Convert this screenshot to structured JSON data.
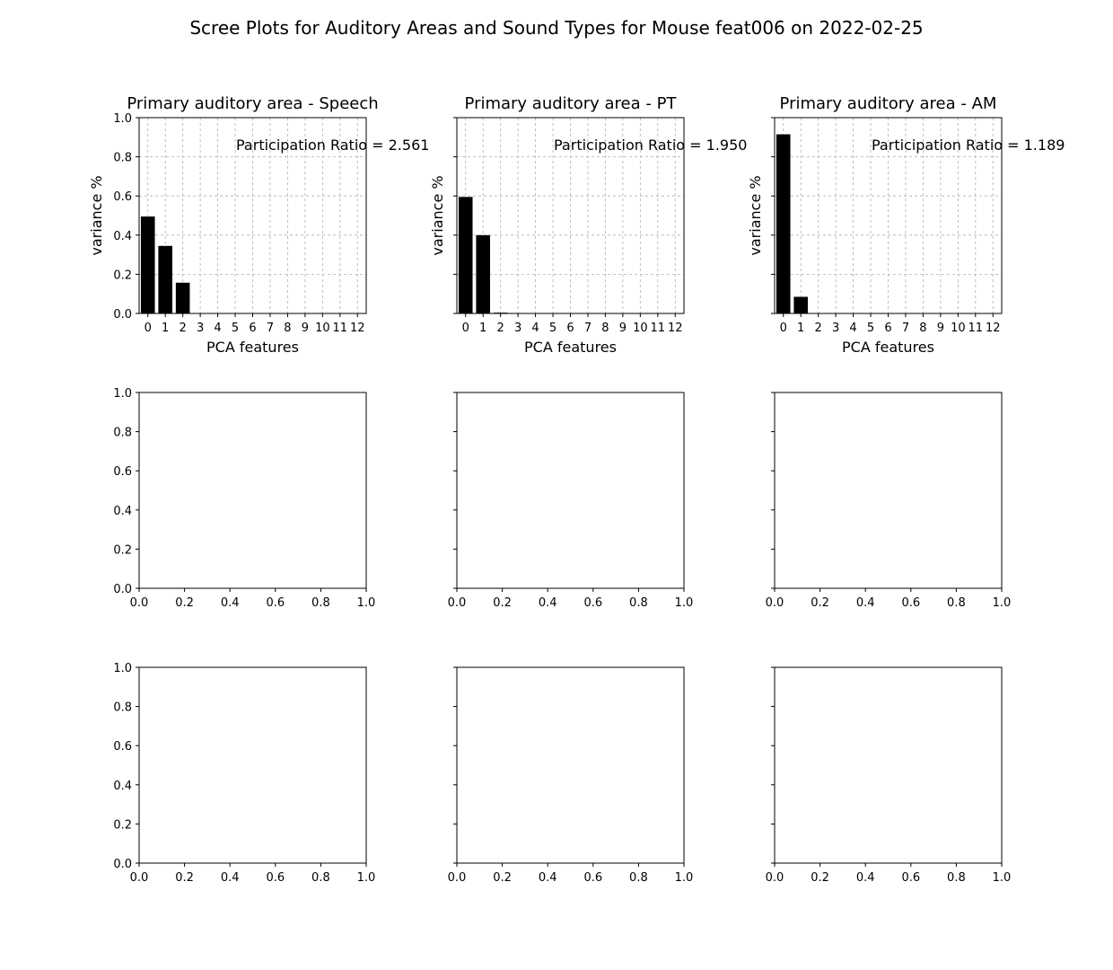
{
  "figure": {
    "title": "Scree Plots for Auditory Areas and Sound Types for Mouse feat006 on 2022-02-25"
  },
  "chart_data": [
    {
      "type": "bar",
      "title": "Primary auditory area - Speech",
      "xlabel": "PCA features",
      "ylabel": "variance %",
      "categories": [
        "0",
        "1",
        "2",
        "3",
        "4",
        "5",
        "6",
        "7",
        "8",
        "9",
        "10",
        "11",
        "12"
      ],
      "values": [
        0.495,
        0.345,
        0.157,
        0.002,
        0,
        0,
        0,
        0,
        0,
        0,
        0,
        0,
        0
      ],
      "xlim": [
        -0.5,
        12.5
      ],
      "ylim": [
        0,
        1
      ],
      "yticks": [
        "0.0",
        "0.2",
        "0.4",
        "0.6",
        "0.8",
        "1.0"
      ],
      "show_ytick_labels": true,
      "grid": true,
      "annotation": "Participation Ratio = 2.561"
    },
    {
      "type": "bar",
      "title": "Primary auditory area - PT",
      "xlabel": "PCA features",
      "ylabel": "variance %",
      "categories": [
        "0",
        "1",
        "2",
        "3",
        "4",
        "5",
        "6",
        "7",
        "8",
        "9",
        "10",
        "11",
        "12"
      ],
      "values": [
        0.595,
        0.4,
        0.004,
        0.001,
        0,
        0,
        0,
        0,
        0,
        0,
        0,
        0,
        0
      ],
      "xlim": [
        -0.5,
        12.5
      ],
      "ylim": [
        0,
        1
      ],
      "yticks": [
        "0.0",
        "0.2",
        "0.4",
        "0.6",
        "0.8",
        "1.0"
      ],
      "show_ytick_labels": false,
      "grid": true,
      "annotation": "Participation Ratio = 1.950"
    },
    {
      "type": "bar",
      "title": "Primary auditory area - AM",
      "xlabel": "PCA features",
      "ylabel": "variance %",
      "categories": [
        "0",
        "1",
        "2",
        "3",
        "4",
        "5",
        "6",
        "7",
        "8",
        "9",
        "10",
        "11",
        "12"
      ],
      "values": [
        0.915,
        0.085,
        0.001,
        0,
        0,
        0,
        0,
        0,
        0,
        0,
        0,
        0,
        0
      ],
      "xlim": [
        -0.5,
        12.5
      ],
      "ylim": [
        0,
        1
      ],
      "yticks": [
        "0.0",
        "0.2",
        "0.4",
        "0.6",
        "0.8",
        "1.0"
      ],
      "show_ytick_labels": false,
      "grid": true,
      "annotation": "Participation Ratio = 1.189"
    },
    {
      "type": "empty",
      "xlim": [
        0,
        1
      ],
      "ylim": [
        0,
        1
      ],
      "xticks": [
        "0.0",
        "0.2",
        "0.4",
        "0.6",
        "0.8",
        "1.0"
      ],
      "yticks": [
        "0.0",
        "0.2",
        "0.4",
        "0.6",
        "0.8",
        "1.0"
      ],
      "show_ytick_labels": true
    },
    {
      "type": "empty",
      "xlim": [
        0,
        1
      ],
      "ylim": [
        0,
        1
      ],
      "xticks": [
        "0.0",
        "0.2",
        "0.4",
        "0.6",
        "0.8",
        "1.0"
      ],
      "yticks": [
        "0.0",
        "0.2",
        "0.4",
        "0.6",
        "0.8",
        "1.0"
      ],
      "show_ytick_labels": false
    },
    {
      "type": "empty",
      "xlim": [
        0,
        1
      ],
      "ylim": [
        0,
        1
      ],
      "xticks": [
        "0.0",
        "0.2",
        "0.4",
        "0.6",
        "0.8",
        "1.0"
      ],
      "yticks": [
        "0.0",
        "0.2",
        "0.4",
        "0.6",
        "0.8",
        "1.0"
      ],
      "show_ytick_labels": false
    },
    {
      "type": "empty",
      "xlim": [
        0,
        1
      ],
      "ylim": [
        0,
        1
      ],
      "xticks": [
        "0.0",
        "0.2",
        "0.4",
        "0.6",
        "0.8",
        "1.0"
      ],
      "yticks": [
        "0.0",
        "0.2",
        "0.4",
        "0.6",
        "0.8",
        "1.0"
      ],
      "show_ytick_labels": true
    },
    {
      "type": "empty",
      "xlim": [
        0,
        1
      ],
      "ylim": [
        0,
        1
      ],
      "xticks": [
        "0.0",
        "0.2",
        "0.4",
        "0.6",
        "0.8",
        "1.0"
      ],
      "yticks": [
        "0.0",
        "0.2",
        "0.4",
        "0.6",
        "0.8",
        "1.0"
      ],
      "show_ytick_labels": false
    },
    {
      "type": "empty",
      "xlim": [
        0,
        1
      ],
      "ylim": [
        0,
        1
      ],
      "xticks": [
        "0.0",
        "0.2",
        "0.4",
        "0.6",
        "0.8",
        "1.0"
      ],
      "yticks": [
        "0.0",
        "0.2",
        "0.4",
        "0.6",
        "0.8",
        "1.0"
      ],
      "show_ytick_labels": false
    }
  ]
}
